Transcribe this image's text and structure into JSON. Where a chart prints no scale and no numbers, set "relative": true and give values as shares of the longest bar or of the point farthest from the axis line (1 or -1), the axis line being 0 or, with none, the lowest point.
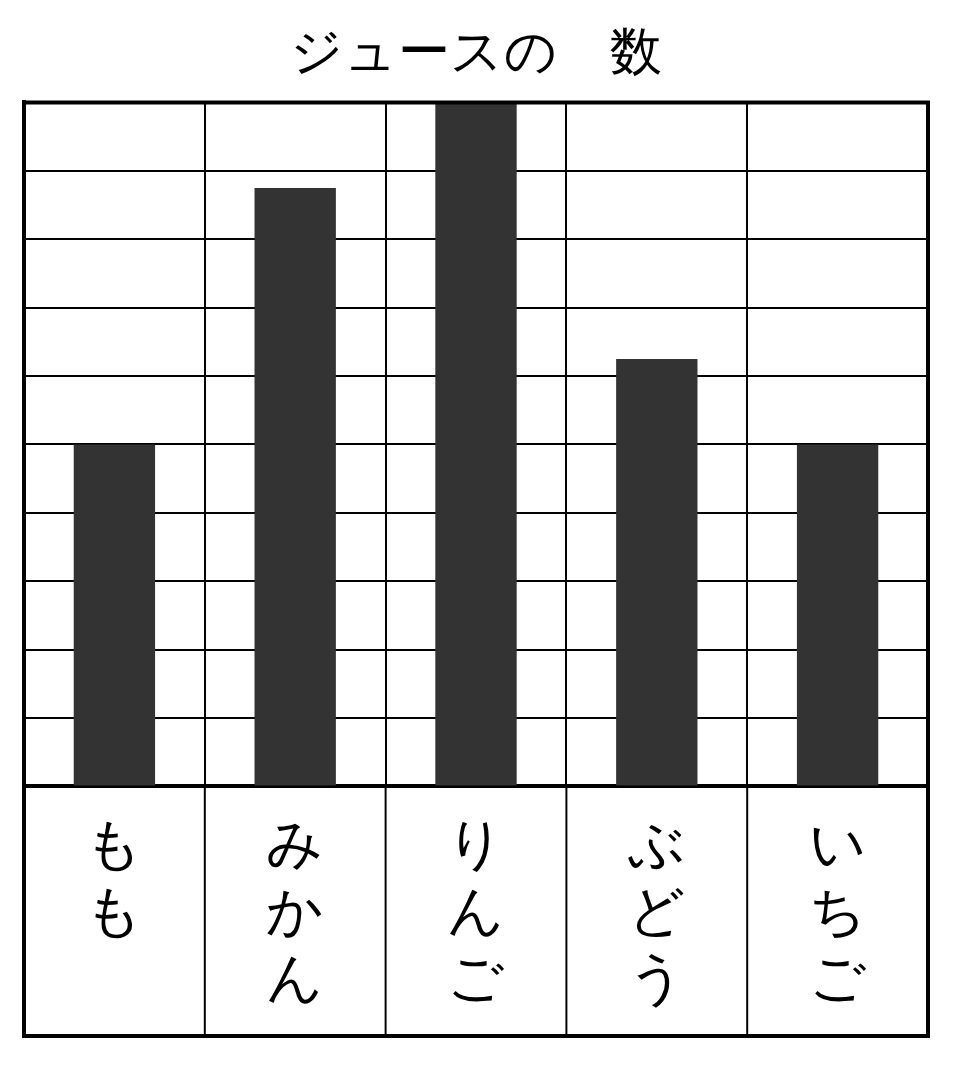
{
  "chart_data": {
    "type": "bar",
    "title": "ジュースの　数",
    "categories": [
      "もも",
      "みかん",
      "りんご",
      "ぶどう",
      "いちご"
    ],
    "values": [
      0.5,
      0.875,
      1,
      0.625,
      0.5
    ],
    "color": "#333333",
    "relative": true,
    "grid": true
  }
}
